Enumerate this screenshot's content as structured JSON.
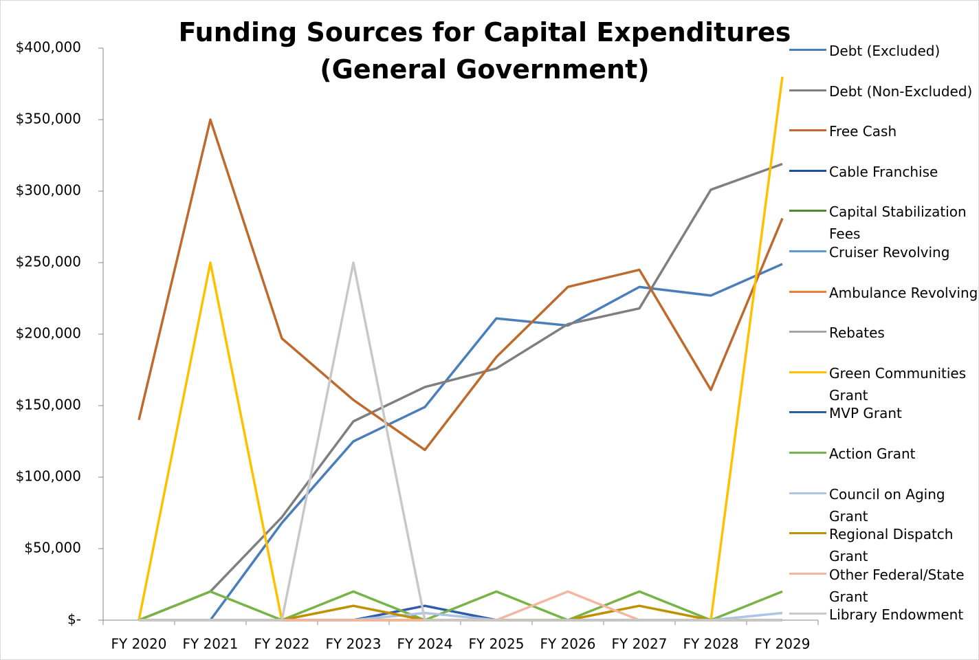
{
  "chart_data": {
    "type": "line",
    "title": "Funding Sources for Capital Expenditures (General Government)",
    "categories": [
      "FY 2020",
      "FY 2021",
      "FY 2022",
      "FY 2023",
      "FY 2024",
      "FY 2025",
      "FY 2026",
      "FY 2027",
      "FY 2028",
      "FY 2029"
    ],
    "series": [
      {
        "name": "Debt (Excluded)",
        "color": "#4a7ebb",
        "values": [
          0,
          0,
          68000,
          125000,
          149000,
          211000,
          206000,
          233000,
          227000,
          249000
        ]
      },
      {
        "name": "Debt (Non-Excluded)",
        "color": "#7f7f7f",
        "values": [
          0,
          20000,
          72000,
          139000,
          163000,
          176000,
          207000,
          218000,
          301000,
          319000
        ]
      },
      {
        "name": "Free Cash",
        "color": "#be6a2d",
        "values": [
          140000,
          350000,
          197000,
          154000,
          119000,
          184000,
          233000,
          245000,
          161000,
          281000
        ]
      },
      {
        "name": "Cable Franchise",
        "color": "#1f4e9c",
        "values": [
          0,
          0,
          0,
          0,
          0,
          0,
          0,
          0,
          0,
          0
        ]
      },
      {
        "name": "Capital Stabilization Fees",
        "color": "#4f8a2e",
        "values": [
          0,
          0,
          0,
          0,
          0,
          0,
          0,
          0,
          0,
          0
        ]
      },
      {
        "name": "Cruiser Revolving",
        "color": "#5b9bd5",
        "values": [
          0,
          0,
          0,
          0,
          0,
          0,
          0,
          0,
          0,
          0
        ]
      },
      {
        "name": "Ambulance Revolving",
        "color": "#ed7d31",
        "values": [
          0,
          0,
          0,
          0,
          0,
          0,
          0,
          0,
          0,
          0
        ]
      },
      {
        "name": "Rebates",
        "color": "#a5a5a5",
        "values": [
          0,
          0,
          0,
          0,
          0,
          0,
          0,
          0,
          0,
          0
        ]
      },
      {
        "name": "Green Communities Grant",
        "color": "#ffc000",
        "values": [
          0,
          250000,
          0,
          0,
          0,
          0,
          0,
          0,
          0,
          380000
        ]
      },
      {
        "name": "MVP Grant",
        "color": "#2e5ca8",
        "values": [
          0,
          0,
          0,
          0,
          10000,
          0,
          0,
          0,
          0,
          0
        ]
      },
      {
        "name": "Action Grant",
        "color": "#77b347",
        "values": [
          0,
          20000,
          0,
          20000,
          0,
          20000,
          0,
          20000,
          0,
          20000
        ]
      },
      {
        "name": "Council on Aging Grant",
        "color": "#aec4e5",
        "values": [
          0,
          0,
          0,
          0,
          5000,
          0,
          0,
          0,
          0,
          5000
        ]
      },
      {
        "name": "Regional Dispatch Grant",
        "color": "#c09000",
        "values": [
          0,
          0,
          0,
          10000,
          0,
          0,
          0,
          10000,
          0,
          0
        ]
      },
      {
        "name": "Other Federal/State Grant",
        "color": "#f4b6a0",
        "values": [
          0,
          0,
          0,
          0,
          0,
          0,
          20000,
          0,
          0,
          0
        ]
      },
      {
        "name": "Library Endowment",
        "color": "#c8c8c8",
        "values": [
          0,
          0,
          0,
          250000,
          0,
          0,
          0,
          0,
          0,
          0
        ]
      }
    ],
    "ylim": [
      0,
      400000
    ],
    "yticks": [
      {
        "value": 0,
        "label": "$-"
      },
      {
        "value": 50000,
        "label": "$50,000"
      },
      {
        "value": 100000,
        "label": "$100,000"
      },
      {
        "value": 150000,
        "label": "$150,000"
      },
      {
        "value": 200000,
        "label": "$200,000"
      },
      {
        "value": 250000,
        "label": "$250,000"
      },
      {
        "value": 300000,
        "label": "$300,000"
      },
      {
        "value": 350000,
        "label": "$350,000"
      },
      {
        "value": 400000,
        "label": "$400,000"
      }
    ],
    "grid": false,
    "legend": "right"
  }
}
